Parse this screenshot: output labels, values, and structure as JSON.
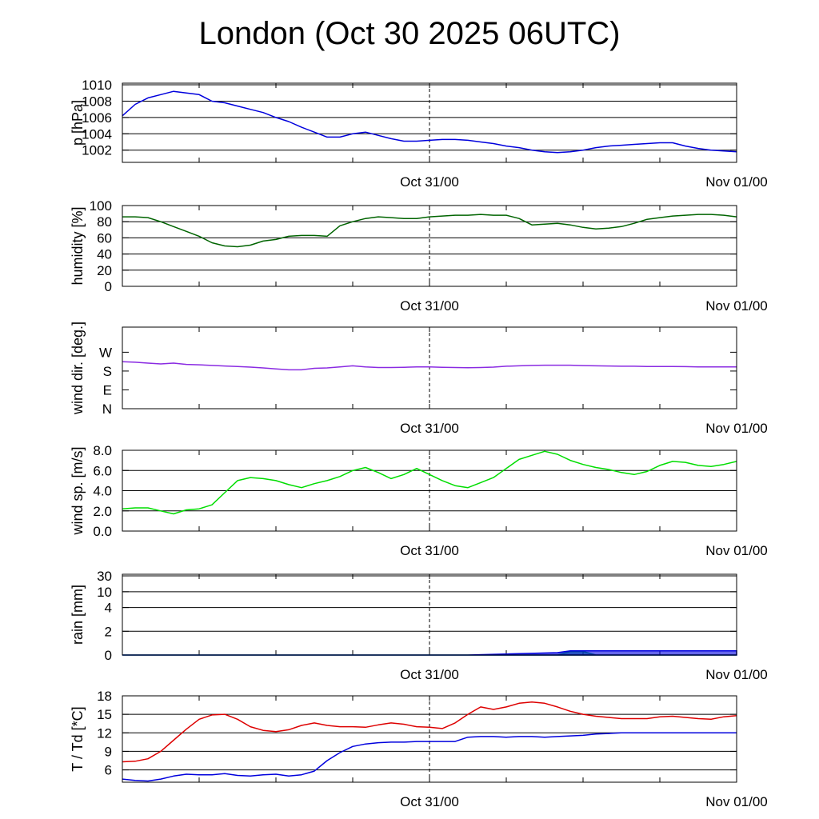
{
  "title": "London (Oct 30 2025 06UTC)",
  "chart_data": [
    {
      "type": "line",
      "id": "pressure",
      "ylabel": "p [hPa]",
      "ylim": [
        1000.5,
        1010.2
      ],
      "yticks": [
        1002,
        1004,
        1006,
        1008,
        1010
      ],
      "ytick_labels": [
        "1002",
        "1004",
        "1006",
        "1008",
        "1010"
      ],
      "grid": true,
      "xlim": [
        -6,
        42
      ],
      "xticks": [
        18,
        42
      ],
      "xtick_labels": [
        "Oct 31/00",
        "Nov 01/00"
      ],
      "vline": 18,
      "series": [
        {
          "color": "#0000dd",
          "x": [
            -6,
            -5,
            -4,
            -3,
            -2,
            -1,
            0,
            1,
            2,
            3,
            4,
            5,
            6,
            7,
            8,
            9,
            10,
            11,
            12,
            13,
            14,
            15,
            16,
            17,
            18,
            19,
            20,
            21,
            22,
            23,
            24,
            25,
            26,
            27,
            28,
            29,
            30,
            31,
            32,
            33,
            34,
            35,
            36,
            37,
            38,
            39,
            40,
            41,
            42
          ],
          "y": [
            1006.2,
            1007.6,
            1008.4,
            1008.8,
            1009.2,
            1009.0,
            1008.8,
            1008.0,
            1007.8,
            1007.4,
            1007.0,
            1006.6,
            1006.0,
            1005.5,
            1004.8,
            1004.2,
            1003.6,
            1003.6,
            1004.0,
            1004.2,
            1003.8,
            1003.4,
            1003.1,
            1003.1,
            1003.2,
            1003.3,
            1003.3,
            1003.2,
            1003.0,
            1002.8,
            1002.5,
            1002.3,
            1002.0,
            1001.8,
            1001.7,
            1001.8,
            1002.0,
            1002.3,
            1002.5,
            1002.6,
            1002.7,
            1002.8,
            1002.9,
            1002.9,
            1002.5,
            1002.2,
            1002.0,
            1001.9,
            1001.8
          ]
        }
      ]
    },
    {
      "type": "line",
      "id": "humidity",
      "ylabel": "humidity [%]",
      "ylim": [
        0,
        100
      ],
      "yticks": [
        0,
        20,
        40,
        60,
        80,
        100
      ],
      "ytick_labels": [
        "0",
        "20",
        "40",
        "60",
        "80",
        "100"
      ],
      "grid": true,
      "xlim": [
        -6,
        42
      ],
      "xticks": [
        18,
        42
      ],
      "xtick_labels": [
        "Oct 31/00",
        "Nov 01/00"
      ],
      "vline": 18,
      "series": [
        {
          "color": "#006400",
          "x": [
            -6,
            -5,
            -4,
            -3,
            -2,
            -1,
            0,
            1,
            2,
            3,
            4,
            5,
            6,
            7,
            8,
            9,
            10,
            11,
            12,
            13,
            14,
            15,
            16,
            17,
            18,
            19,
            20,
            21,
            22,
            23,
            24,
            25,
            26,
            27,
            28,
            29,
            30,
            31,
            32,
            33,
            34,
            35,
            36,
            37,
            38,
            39,
            40,
            41,
            42
          ],
          "y": [
            86,
            86,
            85,
            80,
            74,
            68,
            62,
            54,
            50,
            49,
            51,
            56,
            58,
            62,
            63,
            63,
            62,
            75,
            80,
            84,
            86,
            85,
            84,
            84,
            86,
            87,
            88,
            88,
            89,
            88,
            88,
            84,
            76,
            77,
            78,
            76,
            73,
            71,
            72,
            74,
            78,
            83,
            85,
            87,
            88,
            89,
            89,
            88,
            86
          ]
        }
      ]
    },
    {
      "type": "line",
      "id": "wind_direction",
      "ylabel": "wind dir. [deg.]",
      "ylim": [
        0,
        390
      ],
      "yticks": [
        0,
        90,
        180,
        270
      ],
      "ytick_labels": [
        "N",
        "E",
        "S",
        "W"
      ],
      "grid": false,
      "xlim": [
        -6,
        42
      ],
      "xticks": [
        18,
        42
      ],
      "xtick_labels": [
        "Oct 31/00",
        "Nov 01/00"
      ],
      "vline": 18,
      "series": [
        {
          "color": "#8a2be2",
          "x": [
            -6,
            -5,
            -4,
            -3,
            -2,
            -1,
            0,
            1,
            2,
            3,
            4,
            5,
            6,
            7,
            8,
            9,
            10,
            11,
            12,
            13,
            14,
            15,
            16,
            17,
            18,
            19,
            20,
            21,
            22,
            23,
            24,
            25,
            26,
            27,
            28,
            29,
            30,
            31,
            32,
            33,
            34,
            35,
            36,
            37,
            38,
            39,
            40,
            41,
            42
          ],
          "y": [
            225,
            222,
            218,
            214,
            218,
            212,
            210,
            207,
            204,
            202,
            199,
            195,
            190,
            186,
            186,
            193,
            195,
            200,
            205,
            200,
            197,
            197,
            198,
            200,
            200,
            198,
            197,
            196,
            197,
            199,
            203,
            205,
            207,
            208,
            208,
            208,
            206,
            205,
            204,
            203,
            203,
            202,
            202,
            202,
            201,
            200,
            200,
            200,
            200
          ]
        }
      ]
    },
    {
      "type": "line",
      "id": "wind_speed",
      "ylabel": "wind sp. [m/s]",
      "ylim": [
        0,
        8.0
      ],
      "yticks": [
        0.0,
        2.0,
        4.0,
        6.0,
        8.0
      ],
      "ytick_labels": [
        "0.0",
        "2.0",
        "4.0",
        "6.0",
        "8.0"
      ],
      "grid": true,
      "xlim": [
        -6,
        42
      ],
      "xticks": [
        18,
        42
      ],
      "xtick_labels": [
        "Oct 31/00",
        "Nov 01/00"
      ],
      "vline": 18,
      "series": [
        {
          "color": "#00dd00",
          "x": [
            -6,
            -5,
            -4,
            -3,
            -2,
            -1,
            0,
            1,
            2,
            3,
            4,
            5,
            6,
            7,
            8,
            9,
            10,
            11,
            12,
            13,
            14,
            15,
            16,
            17,
            18,
            19,
            20,
            21,
            22,
            23,
            24,
            25,
            26,
            27,
            28,
            29,
            30,
            31,
            32,
            33,
            34,
            35,
            36,
            37,
            38,
            39,
            40,
            41,
            42
          ],
          "y": [
            2.2,
            2.3,
            2.3,
            2.0,
            1.7,
            2.1,
            2.2,
            2.6,
            3.8,
            5.0,
            5.3,
            5.2,
            5.0,
            4.6,
            4.3,
            4.7,
            5.0,
            5.4,
            6.0,
            6.3,
            5.8,
            5.2,
            5.6,
            6.2,
            5.6,
            5.0,
            4.5,
            4.3,
            4.8,
            5.3,
            6.2,
            7.1,
            7.5,
            7.9,
            7.6,
            7.0,
            6.6,
            6.3,
            6.1,
            5.8,
            5.6,
            5.9,
            6.5,
            6.9,
            6.8,
            6.5,
            6.4,
            6.6,
            6.9
          ]
        }
      ]
    },
    {
      "type": "area",
      "id": "rain",
      "ylabel": "rain [mm]",
      "ylim": [
        0,
        30
      ],
      "yticks": [
        0,
        2,
        4,
        10,
        30
      ],
      "ytick_labels": [
        "0",
        "2",
        "4",
        "10",
        "30"
      ],
      "grid": true,
      "xlim": [
        -6,
        42
      ],
      "xticks": [
        18,
        42
      ],
      "xtick_labels": [
        "Oct 31/00",
        "Nov 01/00"
      ],
      "vline": 18,
      "series": [
        {
          "color": "#00b050",
          "x": [
            -6,
            17,
            28,
            29,
            30,
            31,
            42
          ],
          "y": [
            0,
            0,
            0,
            0.3,
            0.3,
            0,
            0
          ]
        },
        {
          "color": "#0000dd",
          "x": [
            -6,
            21,
            28,
            29,
            30,
            42
          ],
          "y": [
            0,
            0,
            0.2,
            0.35,
            0.35,
            0.35
          ]
        }
      ]
    },
    {
      "type": "line",
      "id": "temperature_dewpoint",
      "ylabel": "T / Td [*C]",
      "ylim": [
        4,
        18
      ],
      "yticks": [
        6,
        9,
        12,
        15,
        18
      ],
      "ytick_labels": [
        "6",
        "9",
        "12",
        "15",
        "18"
      ],
      "grid": true,
      "xlim": [
        -6,
        42
      ],
      "xticks": [
        18,
        42
      ],
      "xtick_labels": [
        "Oct 31/00",
        "Nov 01/00"
      ],
      "vline": 18,
      "series": [
        {
          "color": "#dd0000",
          "x": [
            -6,
            -5,
            -4,
            -3,
            -2,
            -1,
            0,
            1,
            2,
            3,
            4,
            5,
            6,
            7,
            8,
            9,
            10,
            11,
            12,
            13,
            14,
            15,
            16,
            17,
            18,
            19,
            20,
            21,
            22,
            23,
            24,
            25,
            26,
            27,
            28,
            29,
            30,
            31,
            32,
            33,
            34,
            35,
            36,
            37,
            38,
            39,
            40,
            41,
            42
          ],
          "y": [
            7.3,
            7.4,
            7.8,
            9.0,
            10.8,
            12.6,
            14.2,
            14.9,
            15.0,
            14.2,
            13.0,
            12.4,
            12.2,
            12.5,
            13.2,
            13.6,
            13.2,
            13.0,
            13.0,
            12.9,
            13.3,
            13.6,
            13.4,
            13.0,
            12.9,
            12.7,
            13.6,
            15.0,
            16.2,
            15.8,
            16.2,
            16.8,
            17.0,
            16.8,
            16.2,
            15.5,
            15.0,
            14.7,
            14.5,
            14.3,
            14.3,
            14.3,
            14.6,
            14.7,
            14.5,
            14.3,
            14.2,
            14.6,
            14.8
          ]
        },
        {
          "color": "#0000dd",
          "x": [
            -6,
            -5,
            -4,
            -3,
            -2,
            -1,
            0,
            1,
            2,
            3,
            4,
            5,
            6,
            7,
            8,
            9,
            10,
            11,
            12,
            13,
            14,
            15,
            16,
            17,
            18,
            19,
            20,
            21,
            22,
            23,
            24,
            25,
            26,
            27,
            28,
            29,
            30,
            31,
            32,
            33,
            34,
            35,
            36,
            37,
            38,
            39,
            40,
            41,
            42
          ],
          "y": [
            4.5,
            4.3,
            4.2,
            4.5,
            5.0,
            5.3,
            5.2,
            5.2,
            5.4,
            5.1,
            5.0,
            5.2,
            5.3,
            5.0,
            5.2,
            5.8,
            7.5,
            8.8,
            9.8,
            10.2,
            10.4,
            10.5,
            10.5,
            10.6,
            10.6,
            10.6,
            10.6,
            11.3,
            11.4,
            11.4,
            11.3,
            11.4,
            11.4,
            11.3,
            11.4,
            11.5,
            11.6,
            11.8,
            11.9,
            12.0,
            12.0,
            12.0,
            12.0,
            12.0,
            12.0,
            12.0,
            12.0,
            12.0,
            12.0
          ]
        }
      ]
    }
  ]
}
